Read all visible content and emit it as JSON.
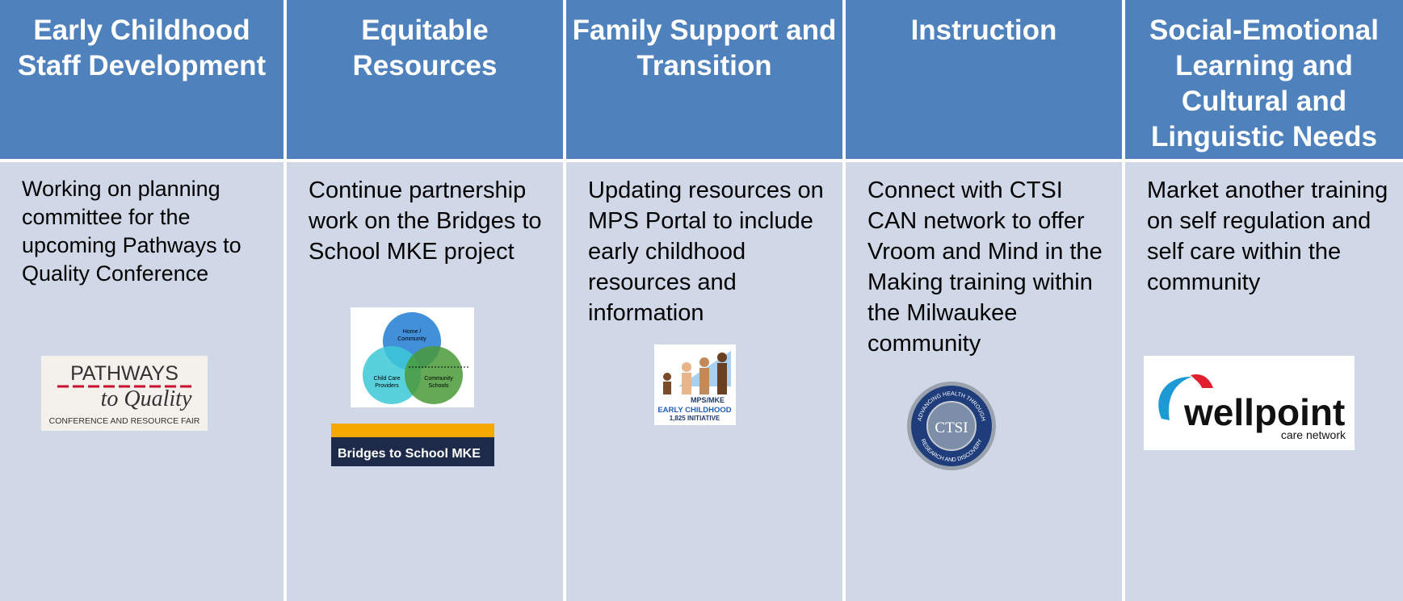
{
  "columns": [
    {
      "header": "Early Childhood Staff Development",
      "text": "Working on planning committee for the upcoming Pathways to Quality Conference",
      "logo_text": [
        "PATHWAYS",
        "to Quality",
        "CONFERENCE AND RESOURCE FAIR"
      ]
    },
    {
      "header": "Equitable Resources",
      "text": "Continue partnership work on the Bridges to School MKE project",
      "logo_text": [
        "Home /",
        "Community",
        "Child Care",
        "Providers",
        "Community",
        "Schools",
        "Bridges to School MKE"
      ]
    },
    {
      "header": "Family Support and Transition",
      "text": "Updating resources on MPS Portal to include early childhood resources and information",
      "logo_text": [
        "MPS/MKE",
        "EARLY CHILDHOOD",
        "1,825 INITIATIVE"
      ]
    },
    {
      "header": "Instruction",
      "text": "Connect with CTSI CAN network to offer Vroom and Mind in the Making training within the Milwaukee community",
      "logo_text": [
        "CTSI",
        "ADVANCING HEALTH THROUGH",
        "RESEARCH AND DISCOVERY"
      ]
    },
    {
      "header": "Social-Emotional Learning and Cultural and Linguistic Needs",
      "text": "Market another training on self regulation and self care within the community",
      "logo_text": [
        "wellpoint",
        "care network"
      ]
    }
  ]
}
